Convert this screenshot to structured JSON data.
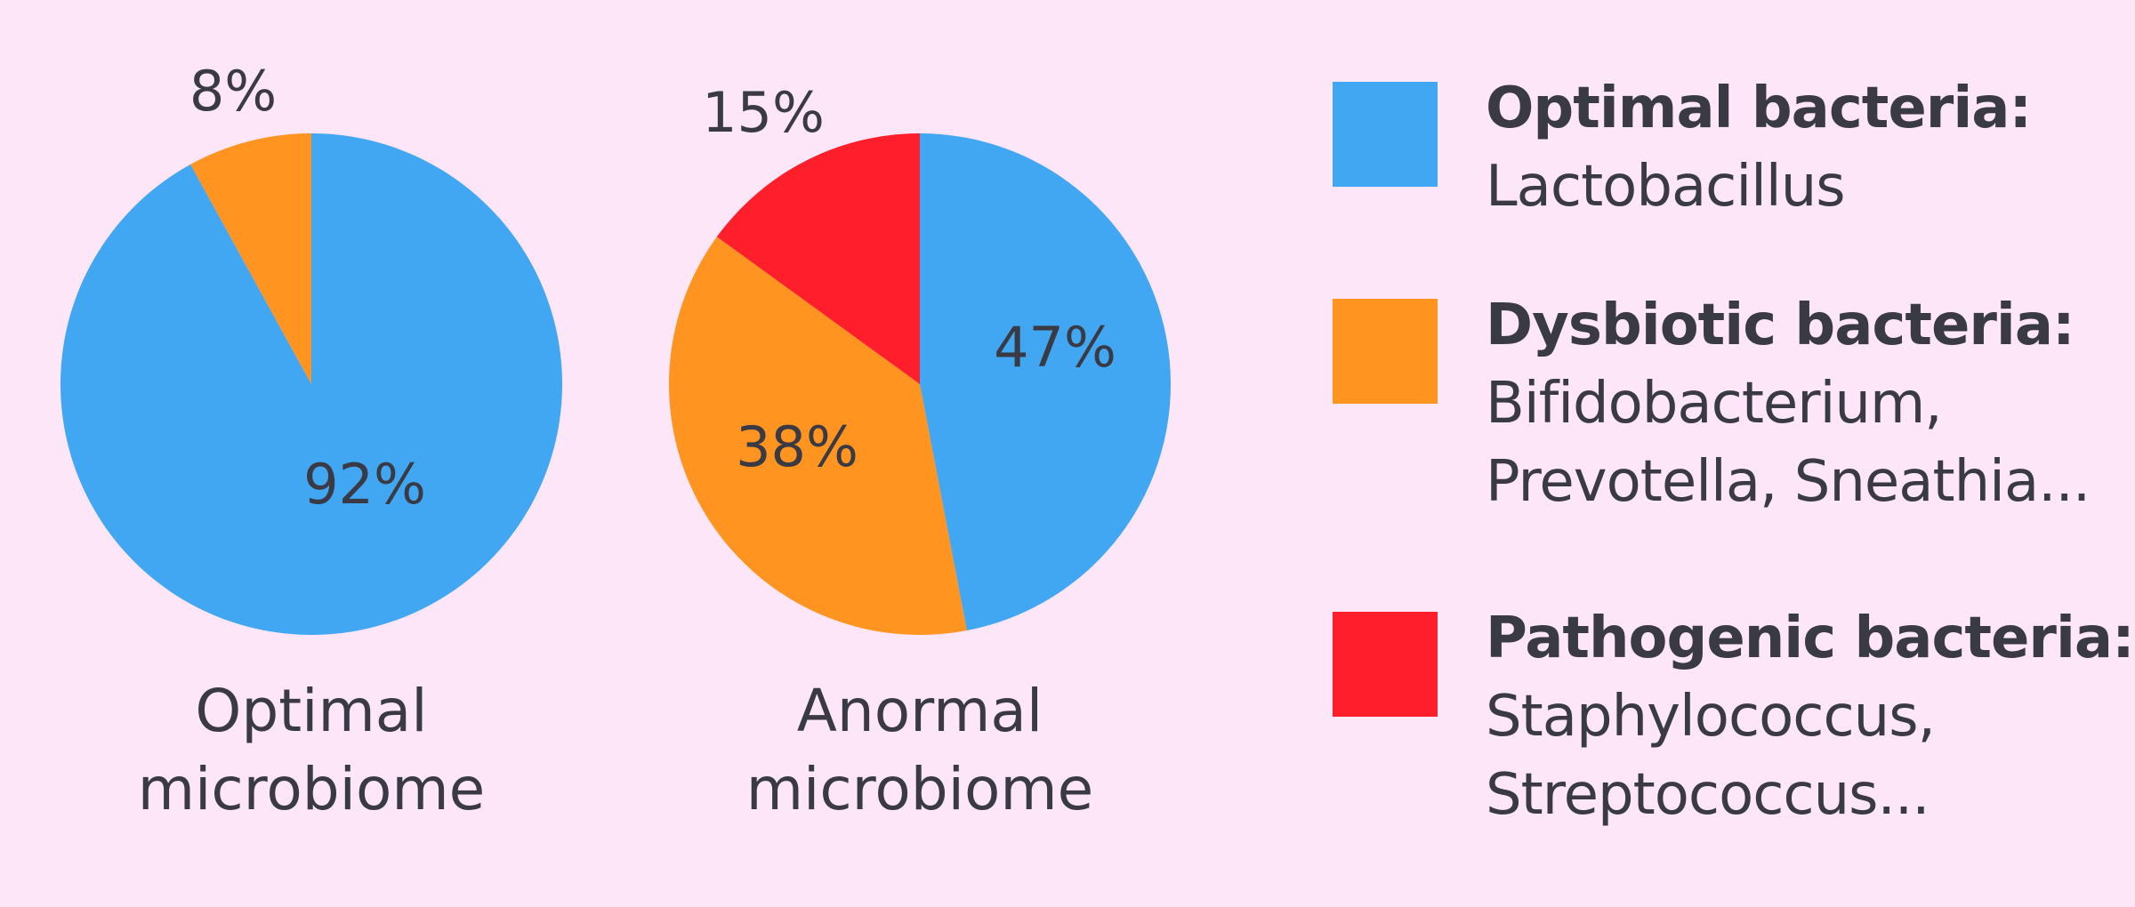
{
  "colors": {
    "background": "#fde6f8",
    "optimal": "#42a7f2",
    "dysbiotic": "#ff9420",
    "pathogenic": "#ff1f2a",
    "text": "#3a3a44"
  },
  "chart_data": [
    {
      "type": "pie",
      "title": "Optimal microbiome",
      "title_lines": [
        "Optimal",
        "microbiome"
      ],
      "slices": [
        {
          "category": "optimal",
          "value": 92,
          "label": "92%"
        },
        {
          "category": "dysbiotic",
          "value": 8,
          "label": "8%"
        }
      ]
    },
    {
      "type": "pie",
      "title": "Anormal microbiome",
      "title_lines": [
        "Anormal",
        "microbiome"
      ],
      "slices": [
        {
          "category": "optimal",
          "value": 47,
          "label": "47%"
        },
        {
          "category": "dysbiotic",
          "value": 38,
          "label": "38%"
        },
        {
          "category": "pathogenic",
          "value": 15,
          "label": "15%"
        }
      ]
    }
  ],
  "legend": {
    "placement": "right",
    "items": [
      {
        "category": "optimal",
        "color": "#42a7f2",
        "title": "Optimal bacteria:",
        "lines": [
          "Lactobacillus"
        ]
      },
      {
        "category": "dysbiotic",
        "color": "#ff9420",
        "title": "Dysbiotic bacteria:",
        "lines": [
          "Bifidobacterium,",
          "Prevotella, Sneathia..."
        ]
      },
      {
        "category": "pathogenic",
        "color": "#ff1f2a",
        "title": "Pathogenic bacteria:",
        "lines": [
          "Staphylococcus,",
          "Streptococcus..."
        ]
      }
    ]
  }
}
